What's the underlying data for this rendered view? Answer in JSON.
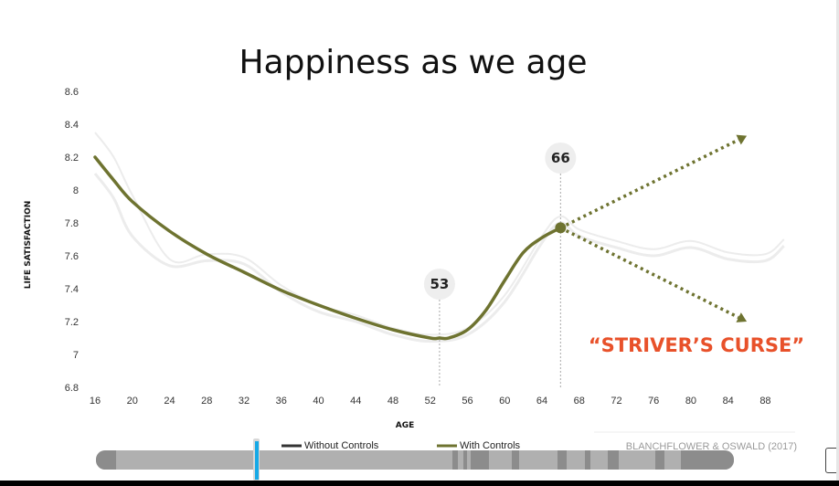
{
  "chart_data": {
    "type": "line",
    "title": "Happiness as we age",
    "xlabel": "AGE",
    "ylabel": "LIFE SATISFACTION",
    "xlim": [
      16,
      91
    ],
    "ylim": [
      6.8,
      8.6
    ],
    "x_ticks": [
      "16",
      "20",
      "24",
      "28",
      "32",
      "36",
      "40",
      "44",
      "48",
      "52",
      "56",
      "60",
      "64",
      "68",
      "72",
      "76",
      "80",
      "84",
      "88"
    ],
    "y_ticks": [
      "8.6",
      "8.4",
      "8.2",
      "8",
      "7.8",
      "7.6",
      "7.4",
      "7.2",
      "7",
      "6.8"
    ],
    "grid": false,
    "legend_position": "bottom",
    "series": [
      {
        "name": "With Controls",
        "color": "#6e7330",
        "x": [
          16,
          18,
          20,
          24,
          28,
          32,
          36,
          40,
          44,
          48,
          52,
          53,
          54,
          56,
          58,
          60,
          62,
          64,
          66
        ],
        "y": [
          8.2,
          8.06,
          7.93,
          7.75,
          7.61,
          7.5,
          7.39,
          7.3,
          7.22,
          7.15,
          7.1,
          7.1,
          7.1,
          7.15,
          7.27,
          7.45,
          7.62,
          7.71,
          7.77
        ]
      },
      {
        "name": "Without Controls",
        "color": "#333333",
        "x": [
          16,
          18,
          20,
          24,
          28,
          32,
          36,
          40,
          44,
          48,
          52,
          56,
          60,
          64,
          66,
          68,
          72,
          76,
          80,
          84,
          88,
          90
        ],
        "y": [
          8.1,
          7.95,
          7.72,
          7.54,
          7.57,
          7.55,
          7.38,
          7.26,
          7.2,
          7.12,
          7.08,
          7.12,
          7.32,
          7.68,
          7.8,
          7.72,
          7.65,
          7.6,
          7.65,
          7.58,
          7.57,
          7.66
        ]
      }
    ],
    "annotations": [
      {
        "label": "53",
        "x": 53
      },
      {
        "label": "66",
        "x": 66
      },
      {
        "label": "“STRIVER’S CURSE”",
        "color": "#e8512a"
      }
    ],
    "projections": [
      {
        "from": [
          66,
          7.77
        ],
        "to": [
          86,
          8.33
        ]
      },
      {
        "from": [
          66,
          7.77
        ],
        "to": [
          86,
          7.2
        ]
      }
    ],
    "source": "BLANCHFLOWER & OSWALD (2017)"
  },
  "colors": {
    "series_main": "#6e7330",
    "series_faint": "#ececec",
    "accent": "#e8512a"
  }
}
